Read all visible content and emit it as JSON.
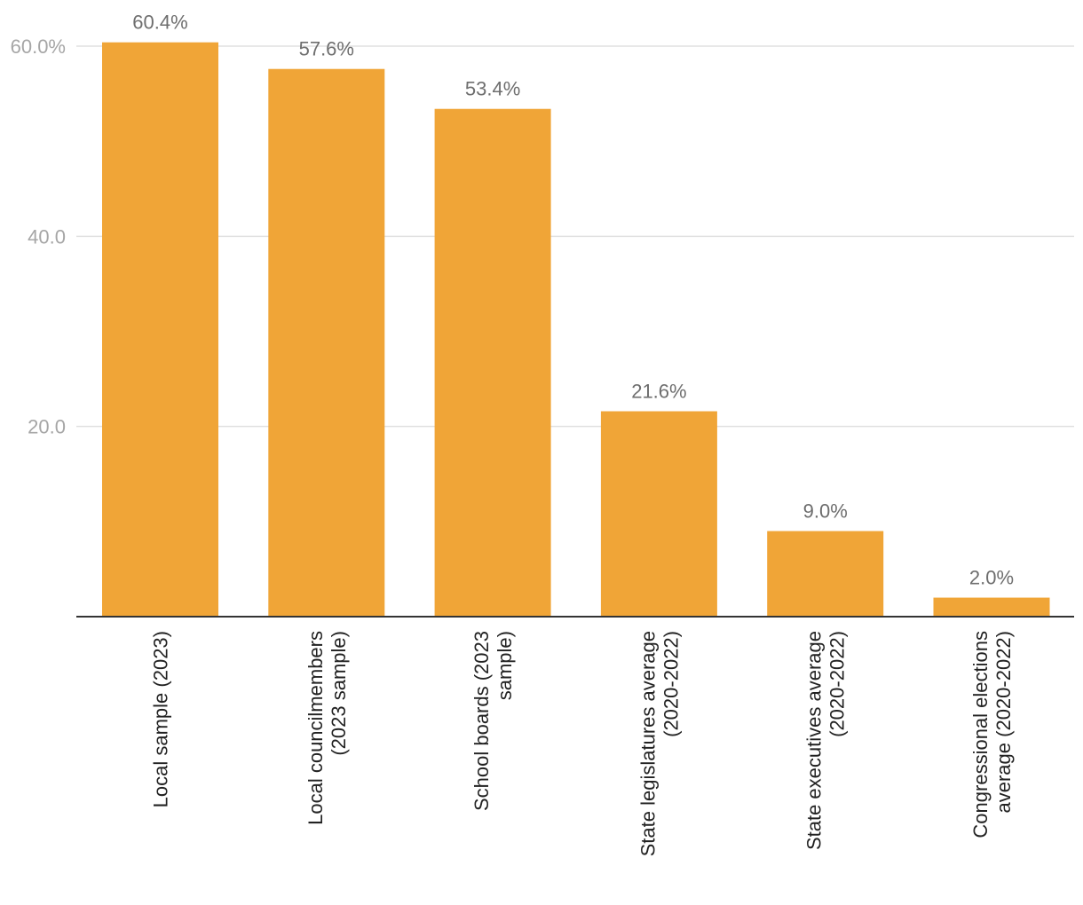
{
  "chart_data": {
    "type": "bar",
    "categories": [
      [
        "Local sample (2023)"
      ],
      [
        "Local councilmembers",
        "(2023 sample)"
      ],
      [
        "School boards (2023",
        "sample)"
      ],
      [
        "State legislatures average",
        "(2020-2022)"
      ],
      [
        "State executives average",
        "(2020-2022)"
      ],
      [
        "Congressional elections",
        "average (2020-2022)"
      ]
    ],
    "values": [
      60.4,
      57.6,
      53.4,
      21.6,
      9.0,
      2.0
    ],
    "data_labels": [
      "60.4%",
      "57.6%",
      "53.4%",
      "21.6%",
      "9.0%",
      "2.0%"
    ],
    "y_ticks": [
      {
        "value": 60,
        "label": "60.0%"
      },
      {
        "value": 40,
        "label": "40.0"
      },
      {
        "value": 20,
        "label": "20.0"
      }
    ],
    "ylim": [
      0,
      60
    ],
    "grid": true,
    "bar_color": "#f0a537",
    "title": "",
    "xlabel": "",
    "ylabel": ""
  }
}
